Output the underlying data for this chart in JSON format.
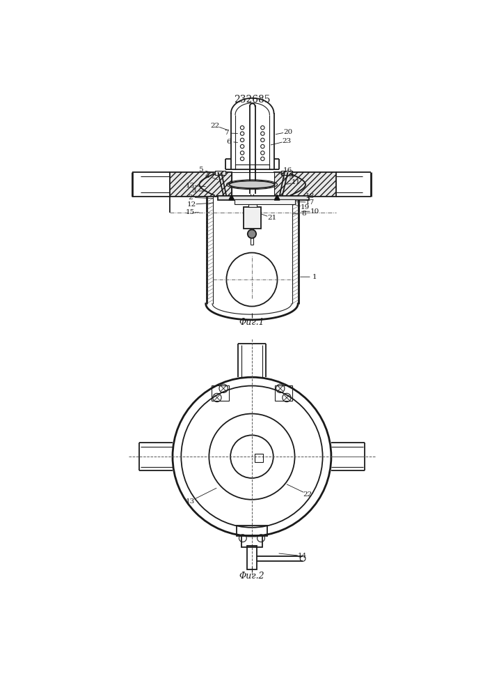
{
  "title": "232685",
  "fig1_label": "Φиг.1",
  "fig2_label": "Φиг.2",
  "bg_color": "#ffffff",
  "line_color": "#1a1a1a",
  "fig_width": 7.07,
  "fig_height": 10.0,
  "dpi": 100
}
